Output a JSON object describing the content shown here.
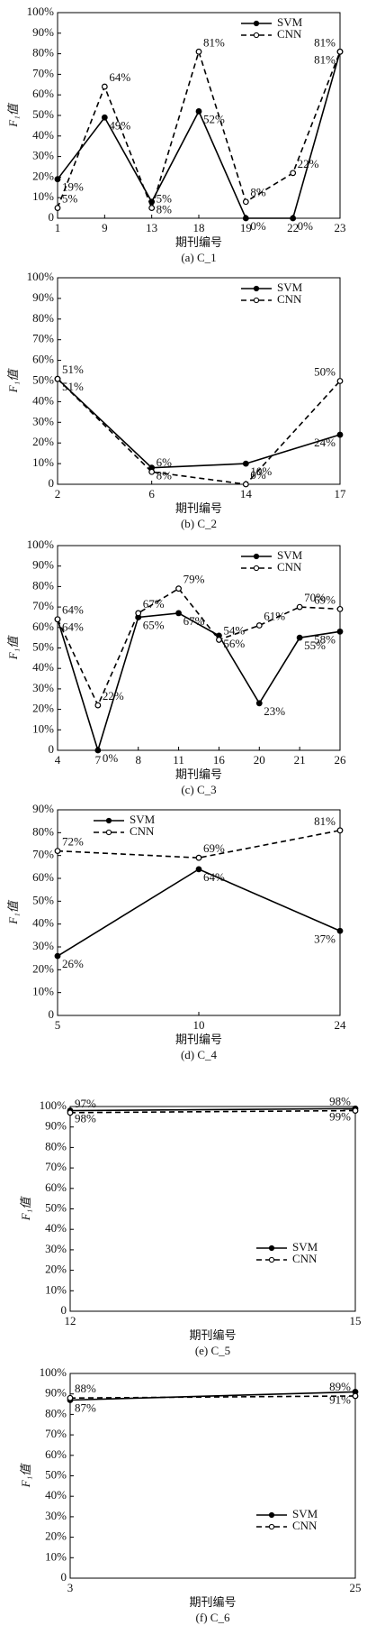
{
  "chart_data": [
    {
      "type": "line",
      "caption": "(a) C_1",
      "xlabel": "期刊编号",
      "ylabel": "F₁值",
      "legend": "upper right",
      "categories": [
        "1",
        "9",
        "13",
        "18",
        "19",
        "22",
        "23"
      ],
      "series": [
        {
          "name": "SVM",
          "color": "#000000",
          "dash": false,
          "values": [
            19,
            49,
            8,
            52,
            0,
            0,
            81
          ],
          "value_labels": [
            "19%",
            "49%",
            "8%",
            "52%",
            "0%",
            "0%",
            "81%"
          ]
        },
        {
          "name": "CNN",
          "color": "#000000",
          "dash": true,
          "values": [
            5,
            64,
            5,
            81,
            8,
            22,
            81
          ],
          "value_labels": [
            "5%",
            "64%",
            "5%",
            "81%",
            "8%",
            "22%",
            "81%"
          ]
        }
      ],
      "ylim": [
        0,
        100
      ],
      "yticks": [
        0,
        {
          "value": 10,
          "label": "10%"
        },
        {
          "value": 20,
          "label": "20%"
        },
        {
          "value": 30,
          "label": "30%"
        },
        {
          "value": 40,
          "label": "40%"
        },
        {
          "value": 50,
          "label": "50%"
        },
        {
          "value": 60,
          "label": "60%"
        },
        {
          "value": 70,
          "label": "70%"
        },
        {
          "value": 80,
          "label": "80%"
        },
        {
          "value": 90,
          "label": "90%"
        },
        {
          "value": 100,
          "label": "100%"
        }
      ]
    },
    {
      "type": "line",
      "caption": "(b) C_2",
      "xlabel": "期刊编号",
      "ylabel": "F₁值",
      "legend": "upper right",
      "categories": [
        "2",
        "6",
        "14",
        "17"
      ],
      "series": [
        {
          "name": "SVM",
          "color": "#000000",
          "dash": false,
          "values": [
            51,
            8,
            10,
            24
          ],
          "value_labels": [
            "51%",
            "8%",
            "10%",
            "24%"
          ]
        },
        {
          "name": "CNN",
          "color": "#000000",
          "dash": true,
          "values": [
            51,
            6,
            0,
            50
          ],
          "value_labels": [
            "51%",
            "6%",
            "0%",
            "50%"
          ]
        }
      ],
      "ylim": [
        0,
        100
      ],
      "yticks": [
        0,
        {
          "value": 10,
          "label": "10%"
        },
        {
          "value": 20,
          "label": "20%"
        },
        {
          "value": 30,
          "label": "30%"
        },
        {
          "value": 40,
          "label": "40%"
        },
        {
          "value": 50,
          "label": "50%"
        },
        {
          "value": 60,
          "label": "60%"
        },
        {
          "value": 70,
          "label": "70%"
        },
        {
          "value": 80,
          "label": "80%"
        },
        {
          "value": 90,
          "label": "90%"
        },
        {
          "value": 100,
          "label": "100%"
        }
      ]
    },
    {
      "type": "line",
      "caption": "(c) C_3",
      "xlabel": "期刊编号",
      "ylabel": "F₁值",
      "legend": "upper right",
      "categories": [
        "4",
        "7",
        "8",
        "11",
        "16",
        "20",
        "21",
        "26"
      ],
      "series": [
        {
          "name": "SVM",
          "color": "#000000",
          "dash": false,
          "values": [
            64,
            0,
            65,
            67,
            56,
            23,
            55,
            58
          ],
          "value_labels": [
            "64%",
            "0%",
            "65%",
            "67%",
            "56%",
            "23%",
            "55%",
            "58%"
          ]
        },
        {
          "name": "CNN",
          "color": "#000000",
          "dash": true,
          "values": [
            64,
            22,
            67,
            79,
            54,
            61,
            70,
            69
          ],
          "value_labels": [
            "64%",
            "22%",
            "67%",
            "79%",
            "54%",
            "61%",
            "70%",
            "69%"
          ]
        }
      ],
      "ylim": [
        0,
        100
      ],
      "yticks": [
        0,
        {
          "value": 10,
          "label": "10%"
        },
        {
          "value": 20,
          "label": "20%"
        },
        {
          "value": 30,
          "label": "30%"
        },
        {
          "value": 40,
          "label": "40%"
        },
        {
          "value": 50,
          "label": "50%"
        },
        {
          "value": 60,
          "label": "60%"
        },
        {
          "value": 70,
          "label": "70%"
        },
        {
          "value": 80,
          "label": "80%"
        },
        {
          "value": 90,
          "label": "90%"
        },
        {
          "value": 100,
          "label": "100%"
        }
      ]
    },
    {
      "type": "line",
      "caption": "(d) C_4",
      "xlabel": "期刊编号",
      "ylabel": "F₁值",
      "legend": "upper left",
      "categories": [
        "5",
        "10",
        "24"
      ],
      "series": [
        {
          "name": "SVM",
          "color": "#000000",
          "dash": false,
          "values": [
            26,
            64,
            37
          ],
          "value_labels": [
            "26%",
            "64%",
            "37%"
          ]
        },
        {
          "name": "CNN",
          "color": "#000000",
          "dash": true,
          "values": [
            72,
            69,
            81
          ],
          "value_labels": [
            "72%",
            "69%",
            "81%"
          ]
        }
      ],
      "ylim": [
        0,
        90
      ],
      "yticks": [
        0,
        {
          "value": 10,
          "label": "10%"
        },
        {
          "value": 20,
          "label": "20%"
        },
        {
          "value": 30,
          "label": "30%"
        },
        {
          "value": 40,
          "label": "40%"
        },
        {
          "value": 50,
          "label": "50%"
        },
        {
          "value": 60,
          "label": "60%"
        },
        {
          "value": 70,
          "label": "70%"
        },
        {
          "value": 80,
          "label": "80%"
        },
        {
          "value": 90,
          "label": "90%"
        }
      ]
    },
    {
      "type": "line",
      "caption": "(e) C_5",
      "xlabel": "期刊编号",
      "ylabel": "F₁值",
      "legend": "lower right",
      "categories": [
        "12",
        "15"
      ],
      "series": [
        {
          "name": "SVM",
          "color": "#000000",
          "dash": false,
          "values": [
            98,
            99
          ],
          "value_labels": [
            "98%",
            "99%"
          ]
        },
        {
          "name": "CNN",
          "color": "#000000",
          "dash": true,
          "values": [
            97,
            98
          ],
          "value_labels": [
            "97%",
            "98%"
          ]
        }
      ],
      "ylim": [
        0,
        100
      ],
      "yticks": [
        0,
        {
          "value": 10,
          "label": "10%"
        },
        {
          "value": 20,
          "label": "20%"
        },
        {
          "value": 30,
          "label": "30%"
        },
        {
          "value": 40,
          "label": "40%"
        },
        {
          "value": 50,
          "label": "50%"
        },
        {
          "value": 60,
          "label": "60%"
        },
        {
          "value": 70,
          "label": "70%"
        },
        {
          "value": 80,
          "label": "80%"
        },
        {
          "value": 90,
          "label": "90%"
        },
        {
          "value": 100,
          "label": "100%"
        }
      ]
    },
    {
      "type": "line",
      "caption": "(f) C_6",
      "xlabel": "期刊编号",
      "ylabel": "F₁值",
      "legend": "lower right",
      "categories": [
        "3",
        "25"
      ],
      "series": [
        {
          "name": "SVM",
          "color": "#000000",
          "dash": false,
          "values": [
            87,
            91
          ],
          "value_labels": [
            "87%",
            "91%"
          ]
        },
        {
          "name": "CNN",
          "color": "#000000",
          "dash": true,
          "values": [
            88,
            89
          ],
          "value_labels": [
            "88%",
            "89%"
          ]
        }
      ],
      "ylim": [
        0,
        100
      ],
      "yticks": [
        0,
        {
          "value": 10,
          "label": "10%"
        },
        {
          "value": 20,
          "label": "20%"
        },
        {
          "value": 30,
          "label": "30%"
        },
        {
          "value": 40,
          "label": "40%"
        },
        {
          "value": 50,
          "label": "50%"
        },
        {
          "value": 60,
          "label": "60%"
        },
        {
          "value": 70,
          "label": "70%"
        },
        {
          "value": 80,
          "label": "80%"
        },
        {
          "value": 90,
          "label": "90%"
        },
        {
          "value": 100,
          "label": "100%"
        }
      ]
    }
  ]
}
